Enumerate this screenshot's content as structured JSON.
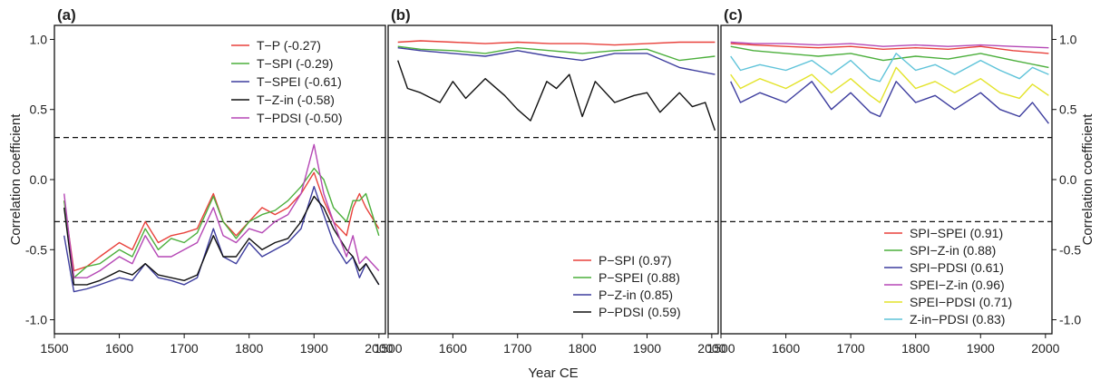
{
  "chart_data": [
    {
      "panel": "(a)",
      "type": "line",
      "xlim": [
        1500,
        2010
      ],
      "ylim": [
        -1.1,
        1.1
      ],
      "xticks": [
        1500,
        1600,
        1700,
        1800,
        1900,
        2000
      ],
      "yticks": [
        -1.0,
        -0.5,
        0.0,
        0.5,
        1.0
      ],
      "ylabel": "Correlation coefficient",
      "reference_lines": [
        0.3,
        -0.3
      ],
      "legend": "top-right",
      "series": [
        {
          "name": "T−P (-0.27)",
          "color": "#e8413b",
          "x": [
            1515,
            1530,
            1550,
            1570,
            1600,
            1620,
            1640,
            1660,
            1680,
            1700,
            1720,
            1745,
            1760,
            1780,
            1800,
            1820,
            1840,
            1860,
            1880,
            1900,
            1915,
            1930,
            1950,
            1960,
            1970,
            1980,
            2000
          ],
          "y": [
            -0.15,
            -0.65,
            -0.62,
            -0.55,
            -0.45,
            -0.5,
            -0.3,
            -0.45,
            -0.4,
            -0.38,
            -0.35,
            -0.1,
            -0.3,
            -0.4,
            -0.3,
            -0.2,
            -0.25,
            -0.2,
            -0.1,
            0.05,
            -0.15,
            -0.3,
            -0.4,
            -0.2,
            -0.1,
            -0.2,
            -0.35
          ]
        },
        {
          "name": "T−SPI (-0.29)",
          "color": "#4caf3c",
          "x": [
            1515,
            1530,
            1550,
            1570,
            1600,
            1620,
            1640,
            1660,
            1680,
            1700,
            1720,
            1745,
            1760,
            1780,
            1800,
            1820,
            1840,
            1860,
            1880,
            1900,
            1915,
            1930,
            1950,
            1960,
            1970,
            1980,
            2000
          ],
          "y": [
            -0.15,
            -0.7,
            -0.62,
            -0.6,
            -0.5,
            -0.55,
            -0.35,
            -0.5,
            -0.42,
            -0.45,
            -0.38,
            -0.12,
            -0.3,
            -0.42,
            -0.3,
            -0.25,
            -0.22,
            -0.15,
            -0.05,
            0.08,
            0.0,
            -0.2,
            -0.3,
            -0.15,
            -0.15,
            -0.1,
            -0.4
          ]
        },
        {
          "name": "T−SPEI (-0.61)",
          "color": "#3d3d9e",
          "x": [
            1515,
            1530,
            1550,
            1570,
            1600,
            1620,
            1640,
            1660,
            1680,
            1700,
            1720,
            1745,
            1760,
            1780,
            1800,
            1820,
            1840,
            1860,
            1880,
            1900,
            1915,
            1930,
            1950,
            1960,
            1970,
            1980,
            2000
          ],
          "y": [
            -0.4,
            -0.8,
            -0.78,
            -0.75,
            -0.7,
            -0.72,
            -0.6,
            -0.7,
            -0.72,
            -0.75,
            -0.7,
            -0.35,
            -0.55,
            -0.6,
            -0.45,
            -0.55,
            -0.5,
            -0.45,
            -0.35,
            -0.05,
            -0.25,
            -0.45,
            -0.6,
            -0.55,
            -0.7,
            -0.6,
            -0.75
          ]
        },
        {
          "name": "T−Z-in (-0.58)",
          "color": "#111111",
          "x": [
            1515,
            1530,
            1550,
            1570,
            1600,
            1620,
            1640,
            1660,
            1680,
            1700,
            1720,
            1745,
            1760,
            1780,
            1800,
            1820,
            1840,
            1860,
            1880,
            1900,
            1915,
            1930,
            1950,
            1960,
            1970,
            1980,
            2000
          ],
          "y": [
            -0.2,
            -0.75,
            -0.75,
            -0.72,
            -0.65,
            -0.68,
            -0.6,
            -0.68,
            -0.7,
            -0.72,
            -0.68,
            -0.4,
            -0.55,
            -0.55,
            -0.42,
            -0.5,
            -0.45,
            -0.42,
            -0.3,
            -0.12,
            -0.2,
            -0.35,
            -0.5,
            -0.55,
            -0.65,
            -0.6,
            -0.75
          ]
        },
        {
          "name": "T−PDSI (-0.50)",
          "color": "#b547b5",
          "x": [
            1515,
            1530,
            1550,
            1570,
            1600,
            1620,
            1640,
            1660,
            1680,
            1700,
            1720,
            1745,
            1760,
            1780,
            1800,
            1820,
            1840,
            1860,
            1880,
            1900,
            1915,
            1930,
            1950,
            1960,
            1970,
            1980,
            2000
          ],
          "y": [
            -0.1,
            -0.7,
            -0.7,
            -0.65,
            -0.55,
            -0.6,
            -0.4,
            -0.55,
            -0.55,
            -0.5,
            -0.45,
            -0.2,
            -0.4,
            -0.45,
            -0.35,
            -0.38,
            -0.3,
            -0.25,
            -0.1,
            0.25,
            -0.1,
            -0.3,
            -0.55,
            -0.4,
            -0.6,
            -0.55,
            -0.65
          ]
        }
      ]
    },
    {
      "panel": "(b)",
      "type": "line",
      "xlim": [
        1500,
        2010
      ],
      "ylim": [
        -1.1,
        1.1
      ],
      "xticks": [
        1500,
        1600,
        1700,
        1800,
        1900,
        2000
      ],
      "reference_lines": [
        0.3,
        -0.3
      ],
      "legend": "bottom-right",
      "series": [
        {
          "name": "P−SPI (0.97)",
          "color": "#e8413b",
          "x": [
            1515,
            1550,
            1600,
            1650,
            1700,
            1750,
            1800,
            1850,
            1900,
            1950,
            2005
          ],
          "y": [
            0.98,
            0.99,
            0.98,
            0.97,
            0.98,
            0.97,
            0.97,
            0.96,
            0.97,
            0.98,
            0.98
          ]
        },
        {
          "name": "P−SPEI (0.88)",
          "color": "#4caf3c",
          "x": [
            1515,
            1550,
            1600,
            1650,
            1700,
            1750,
            1800,
            1850,
            1900,
            1950,
            2005
          ],
          "y": [
            0.95,
            0.93,
            0.92,
            0.9,
            0.94,
            0.92,
            0.9,
            0.92,
            0.93,
            0.85,
            0.88
          ]
        },
        {
          "name": "P−Z-in (0.85)",
          "color": "#3d3d9e",
          "x": [
            1515,
            1550,
            1600,
            1650,
            1700,
            1750,
            1800,
            1850,
            1900,
            1950,
            2005
          ],
          "y": [
            0.94,
            0.92,
            0.9,
            0.88,
            0.92,
            0.88,
            0.85,
            0.9,
            0.9,
            0.8,
            0.75
          ]
        },
        {
          "name": "P−PDSI (0.59)",
          "color": "#111111",
          "x": [
            1515,
            1530,
            1550,
            1580,
            1600,
            1620,
            1650,
            1680,
            1700,
            1720,
            1745,
            1760,
            1780,
            1800,
            1820,
            1850,
            1880,
            1900,
            1920,
            1950,
            1970,
            1990,
            2005
          ],
          "y": [
            0.85,
            0.65,
            0.62,
            0.55,
            0.7,
            0.58,
            0.72,
            0.6,
            0.5,
            0.42,
            0.7,
            0.65,
            0.75,
            0.45,
            0.7,
            0.55,
            0.6,
            0.62,
            0.48,
            0.62,
            0.52,
            0.55,
            0.35
          ]
        }
      ]
    },
    {
      "panel": "(c)",
      "type": "line",
      "xlim": [
        1500,
        2010
      ],
      "ylim": [
        -1.1,
        1.1
      ],
      "xticks": [
        1500,
        1600,
        1700,
        1800,
        1900,
        2000
      ],
      "yticks": [
        -1.0,
        -0.5,
        0.0,
        0.5,
        1.0
      ],
      "ylabel": "Correlation coefficient",
      "reference_lines": [
        0.3,
        -0.3
      ],
      "legend": "bottom-right",
      "series": [
        {
          "name": "SPI−SPEI (0.91)",
          "color": "#e8413b",
          "x": [
            1515,
            1550,
            1600,
            1650,
            1700,
            1750,
            1800,
            1850,
            1900,
            1950,
            2005
          ],
          "y": [
            0.97,
            0.96,
            0.95,
            0.94,
            0.95,
            0.93,
            0.94,
            0.93,
            0.95,
            0.92,
            0.9
          ]
        },
        {
          "name": "SPI−Z-in (0.88)",
          "color": "#4caf3c",
          "x": [
            1515,
            1550,
            1600,
            1650,
            1700,
            1750,
            1800,
            1850,
            1900,
            1950,
            2005
          ],
          "y": [
            0.95,
            0.92,
            0.9,
            0.88,
            0.9,
            0.85,
            0.88,
            0.86,
            0.9,
            0.85,
            0.8
          ]
        },
        {
          "name": "SPI−PDSI (0.61)",
          "color": "#3d3d9e",
          "x": [
            1515,
            1530,
            1560,
            1600,
            1640,
            1670,
            1700,
            1730,
            1745,
            1770,
            1800,
            1830,
            1860,
            1900,
            1930,
            1960,
            1980,
            2005
          ],
          "y": [
            0.7,
            0.55,
            0.62,
            0.55,
            0.7,
            0.5,
            0.62,
            0.48,
            0.45,
            0.7,
            0.55,
            0.6,
            0.5,
            0.62,
            0.5,
            0.45,
            0.55,
            0.4
          ]
        },
        {
          "name": "SPEI−Z-in (0.96)",
          "color": "#b547b5",
          "x": [
            1515,
            1550,
            1600,
            1650,
            1700,
            1750,
            1800,
            1850,
            1900,
            1950,
            2005
          ],
          "y": [
            0.98,
            0.97,
            0.97,
            0.96,
            0.97,
            0.95,
            0.96,
            0.95,
            0.96,
            0.95,
            0.94
          ]
        },
        {
          "name": "SPEI−PDSI (0.71)",
          "color": "#e3e32a",
          "x": [
            1515,
            1530,
            1560,
            1600,
            1640,
            1670,
            1700,
            1730,
            1745,
            1770,
            1800,
            1830,
            1860,
            1900,
            1930,
            1960,
            1980,
            2005
          ],
          "y": [
            0.75,
            0.65,
            0.72,
            0.65,
            0.75,
            0.62,
            0.72,
            0.6,
            0.55,
            0.8,
            0.65,
            0.7,
            0.62,
            0.72,
            0.62,
            0.58,
            0.68,
            0.6
          ]
        },
        {
          "name": "Z-in−PDSI (0.83)",
          "color": "#5ec3d9",
          "x": [
            1515,
            1530,
            1560,
            1600,
            1640,
            1670,
            1700,
            1730,
            1745,
            1770,
            1800,
            1830,
            1860,
            1900,
            1930,
            1960,
            1980,
            2005
          ],
          "y": [
            0.88,
            0.78,
            0.82,
            0.78,
            0.85,
            0.75,
            0.85,
            0.72,
            0.7,
            0.9,
            0.78,
            0.82,
            0.75,
            0.85,
            0.78,
            0.72,
            0.8,
            0.75
          ]
        }
      ]
    }
  ],
  "shared_xlabel": "Year CE"
}
